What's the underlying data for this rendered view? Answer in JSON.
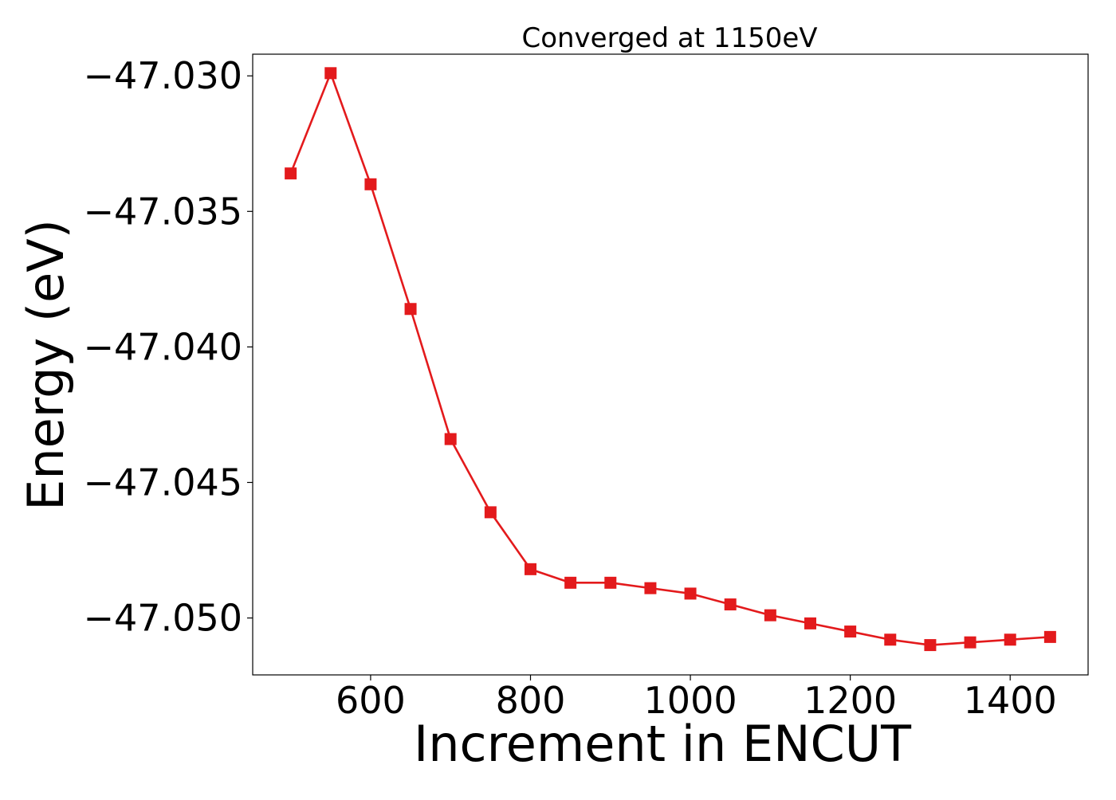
{
  "chart_data": {
    "type": "line",
    "title": "Converged at 1150eV",
    "xlabel": "Increment in ENCUT",
    "ylabel": "Energy (eV)",
    "xlim": [
      452.5,
      1497.5
    ],
    "ylim": [
      -47.0521,
      -47.0292
    ],
    "x_ticks": [
      600,
      800,
      1000,
      1200,
      1400
    ],
    "x_tick_labels": [
      "600",
      "800",
      "1000",
      "1200",
      "1400"
    ],
    "y_ticks": [
      -47.03,
      -47.035,
      -47.04,
      -47.045,
      -47.05
    ],
    "y_tick_labels": [
      "−47.030",
      "−47.035",
      "−47.040",
      "−47.045",
      "−47.050"
    ],
    "grid": false,
    "legend": "none",
    "series": [
      {
        "color": "#e31a1c",
        "marker": "square",
        "x": [
          500,
          550,
          600,
          650,
          700,
          750,
          800,
          850,
          900,
          950,
          1000,
          1050,
          1100,
          1150,
          1200,
          1250,
          1300,
          1350,
          1400,
          1450
        ],
        "y": [
          -47.0336,
          -47.0299,
          -47.034,
          -47.0386,
          -47.0434,
          -47.0461,
          -47.0482,
          -47.0487,
          -47.0487,
          -47.0489,
          -47.0491,
          -47.0495,
          -47.0499,
          -47.0502,
          -47.0505,
          -47.0508,
          -47.051,
          -47.0509,
          -47.0508,
          -47.0507
        ]
      }
    ]
  }
}
